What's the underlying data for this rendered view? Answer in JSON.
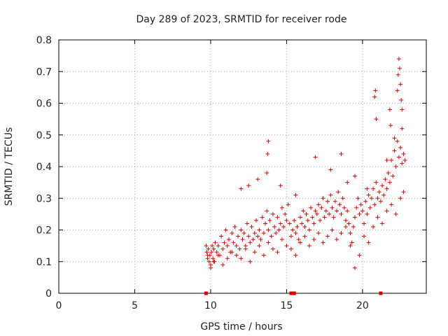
{
  "chart_data": {
    "type": "scatter",
    "title": "Day 289 of 2023, SRMTID for receiver rode",
    "xlabel": "GPS time / hours",
    "ylabel": "SRMTID / TECUs",
    "xlim": [
      0,
      24.2
    ],
    "ylim": [
      0,
      0.8
    ],
    "xticks": [
      0,
      5,
      10,
      15,
      20
    ],
    "xtick_labels": [
      "0",
      "5",
      "10",
      "15",
      "20"
    ],
    "yticks": [
      0,
      0.1,
      0.2,
      0.3,
      0.4,
      0.5,
      0.6,
      0.7,
      0.8
    ],
    "ytick_labels": [
      "0",
      "0.1",
      "0.2",
      "0.3",
      "0.4",
      "0.5",
      "0.6",
      "0.7",
      "0.8"
    ],
    "grid": true,
    "marker": "+",
    "series_color": "#dd0000",
    "series": [
      {
        "name": "SRMTID",
        "x": [
          9.7,
          9.75,
          9.8,
          9.85,
          9.9,
          9.95,
          10.0,
          10.05,
          10.1,
          10.15,
          10.2,
          10.25,
          10.3,
          10.4,
          10.5,
          10.6,
          10.7,
          10.8,
          10.9,
          11.0,
          11.1,
          11.2,
          11.3,
          11.4,
          11.5,
          11.6,
          11.7,
          11.8,
          11.9,
          12.0,
          12.1,
          12.2,
          12.3,
          12.4,
          12.5,
          12.6,
          12.7,
          12.8,
          12.9,
          13.0,
          13.1,
          13.2,
          13.3,
          13.4,
          13.5,
          13.6,
          13.7,
          13.8,
          13.9,
          14.0,
          14.1,
          14.2,
          14.3,
          14.4,
          14.5,
          14.6,
          14.7,
          14.8,
          14.9,
          15.0,
          15.1,
          15.2,
          15.3,
          15.4,
          15.5,
          15.6,
          15.7,
          15.8,
          15.9,
          16.0,
          16.1,
          16.2,
          16.3,
          16.4,
          16.5,
          16.6,
          16.7,
          16.8,
          16.9,
          17.0,
          17.1,
          17.2,
          17.3,
          17.4,
          17.5,
          17.6,
          17.7,
          17.8,
          17.9,
          18.0,
          18.1,
          18.2,
          18.3,
          18.4,
          18.5,
          18.6,
          18.7,
          18.8,
          18.9,
          19.0,
          19.1,
          19.2,
          19.3,
          19.4,
          19.5,
          19.6,
          19.7,
          19.8,
          19.9,
          20.0,
          20.1,
          20.2,
          20.3,
          20.4,
          20.5,
          20.6,
          20.7,
          20.8,
          20.9,
          21.0,
          21.1,
          21.2,
          21.3,
          21.4,
          21.5,
          21.6,
          21.7,
          21.8,
          21.9,
          22.0,
          22.1,
          22.2,
          22.3,
          22.4,
          22.5,
          22.6,
          22.7,
          22.8,
          9.8,
          10.0,
          10.2,
          10.5,
          10.8,
          11.1,
          11.4,
          11.7,
          12.0,
          12.3,
          12.6,
          12.9,
          13.2,
          13.5,
          13.8,
          14.1,
          14.4,
          14.7,
          15.0,
          15.3,
          15.6,
          15.9,
          16.2,
          16.5,
          16.8,
          17.1,
          17.4,
          17.7,
          18.0,
          18.3,
          18.6,
          18.9,
          19.2,
          19.5,
          19.8,
          20.1,
          20.4,
          20.7,
          21.0,
          21.3,
          21.6,
          21.9,
          22.2,
          22.5,
          22.7,
          13.7,
          13.75,
          13.8,
          16.9,
          18.6,
          20.8,
          20.85,
          20.9,
          21.8,
          21.85,
          22.3,
          22.35,
          22.4,
          22.45,
          22.5,
          22.55,
          22.6,
          12.0,
          12.5,
          13.1,
          14.6,
          15.6,
          17.9,
          19.0,
          19.5,
          20.3,
          21.6,
          22.1,
          22.6
        ],
        "y": [
          0.15,
          0.13,
          0.12,
          0.14,
          0.1,
          0.12,
          0.09,
          0.13,
          0.15,
          0.11,
          0.14,
          0.1,
          0.16,
          0.13,
          0.15,
          0.12,
          0.18,
          0.14,
          0.16,
          0.2,
          0.15,
          0.17,
          0.13,
          0.19,
          0.16,
          0.21,
          0.15,
          0.18,
          0.14,
          0.2,
          0.17,
          0.19,
          0.15,
          0.22,
          0.18,
          0.16,
          0.21,
          0.17,
          0.19,
          0.23,
          0.18,
          0.2,
          0.17,
          0.24,
          0.19,
          0.22,
          0.26,
          0.2,
          0.23,
          0.18,
          0.25,
          0.21,
          0.19,
          0.24,
          0.2,
          0.22,
          0.27,
          0.21,
          0.25,
          0.23,
          0.28,
          0.22,
          0.18,
          0.2,
          0.23,
          0.19,
          0.21,
          0.17,
          0.24,
          0.22,
          0.26,
          0.21,
          0.25,
          0.23,
          0.2,
          0.27,
          0.24,
          0.22,
          0.26,
          0.25,
          0.28,
          0.23,
          0.27,
          0.3,
          0.24,
          0.26,
          0.29,
          0.25,
          0.31,
          0.27,
          0.24,
          0.29,
          0.26,
          0.32,
          0.28,
          0.25,
          0.3,
          0.27,
          0.23,
          0.26,
          0.22,
          0.19,
          0.16,
          0.21,
          0.24,
          0.27,
          0.3,
          0.25,
          0.28,
          0.26,
          0.22,
          0.29,
          0.25,
          0.31,
          0.27,
          0.3,
          0.33,
          0.28,
          0.35,
          0.3,
          0.32,
          0.29,
          0.34,
          0.31,
          0.36,
          0.33,
          0.38,
          0.35,
          0.42,
          0.37,
          0.45,
          0.4,
          0.48,
          0.43,
          0.46,
          0.41,
          0.44,
          0.42,
          0.11,
          0.08,
          0.1,
          0.12,
          0.09,
          0.11,
          0.13,
          0.12,
          0.11,
          0.14,
          0.1,
          0.13,
          0.15,
          0.12,
          0.16,
          0.14,
          0.13,
          0.17,
          0.15,
          0.14,
          0.12,
          0.16,
          0.18,
          0.15,
          0.17,
          0.19,
          0.16,
          0.18,
          0.2,
          0.17,
          0.19,
          0.21,
          0.15,
          0.08,
          0.12,
          0.18,
          0.16,
          0.21,
          0.24,
          0.22,
          0.26,
          0.28,
          0.25,
          0.3,
          0.32,
          0.38,
          0.44,
          0.48,
          0.43,
          0.44,
          0.62,
          0.64,
          0.55,
          0.58,
          0.53,
          0.64,
          0.69,
          0.74,
          0.71,
          0.66,
          0.61,
          0.58,
          0.33,
          0.34,
          0.36,
          0.34,
          0.31,
          0.39,
          0.35,
          0.37,
          0.33,
          0.42,
          0.49,
          0.52
        ],
        "zero_markers_x": [
          9.7,
          15.3,
          15.4,
          15.5,
          21.2
        ]
      }
    ]
  }
}
